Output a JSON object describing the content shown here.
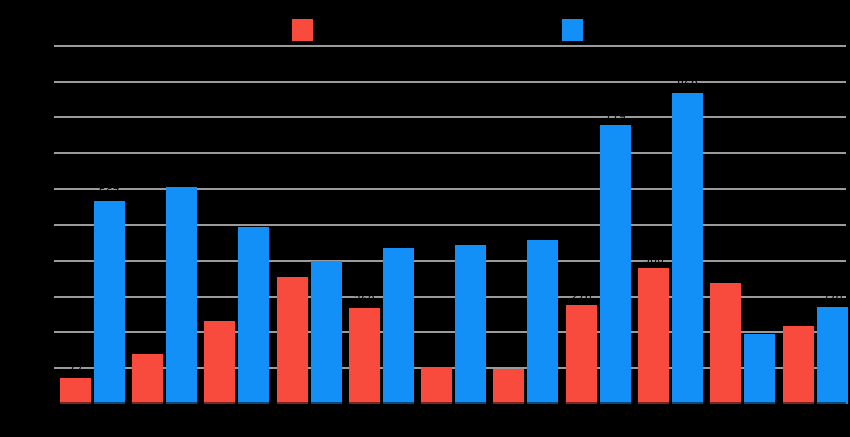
{
  "chart": {
    "background": "#000000",
    "gridline_color": "#9b9b9b",
    "text_color": "#000000"
  },
  "legend": {
    "items": [
      {
        "label": "",
        "color": "#f94b3d"
      },
      {
        "label": "",
        "color": "#1290f8"
      }
    ]
  },
  "chart_data": {
    "type": "bar",
    "title": "",
    "categories": [
      "",
      "",
      "",
      "",
      "",
      "",
      "",
      "",
      "",
      "",
      ""
    ],
    "series": [
      {
        "name": "",
        "color": "#f94b3d",
        "values": [
          72,
          139,
          233,
          355,
          269,
          102,
          99,
          276,
          380,
          338,
          218
        ]
      },
      {
        "name": "",
        "color": "#1290f8",
        "values": [
          567,
          606,
          495,
          399,
          436,
          443,
          457,
          779,
          869,
          195,
          270
        ]
      }
    ],
    "xlabel": "",
    "ylabel": "",
    "ylim": [
      0,
      1000
    ],
    "ytick_step": 100,
    "grid": true,
    "legend_position": "top",
    "data_labels": true,
    "data_label_color": "#000000"
  }
}
